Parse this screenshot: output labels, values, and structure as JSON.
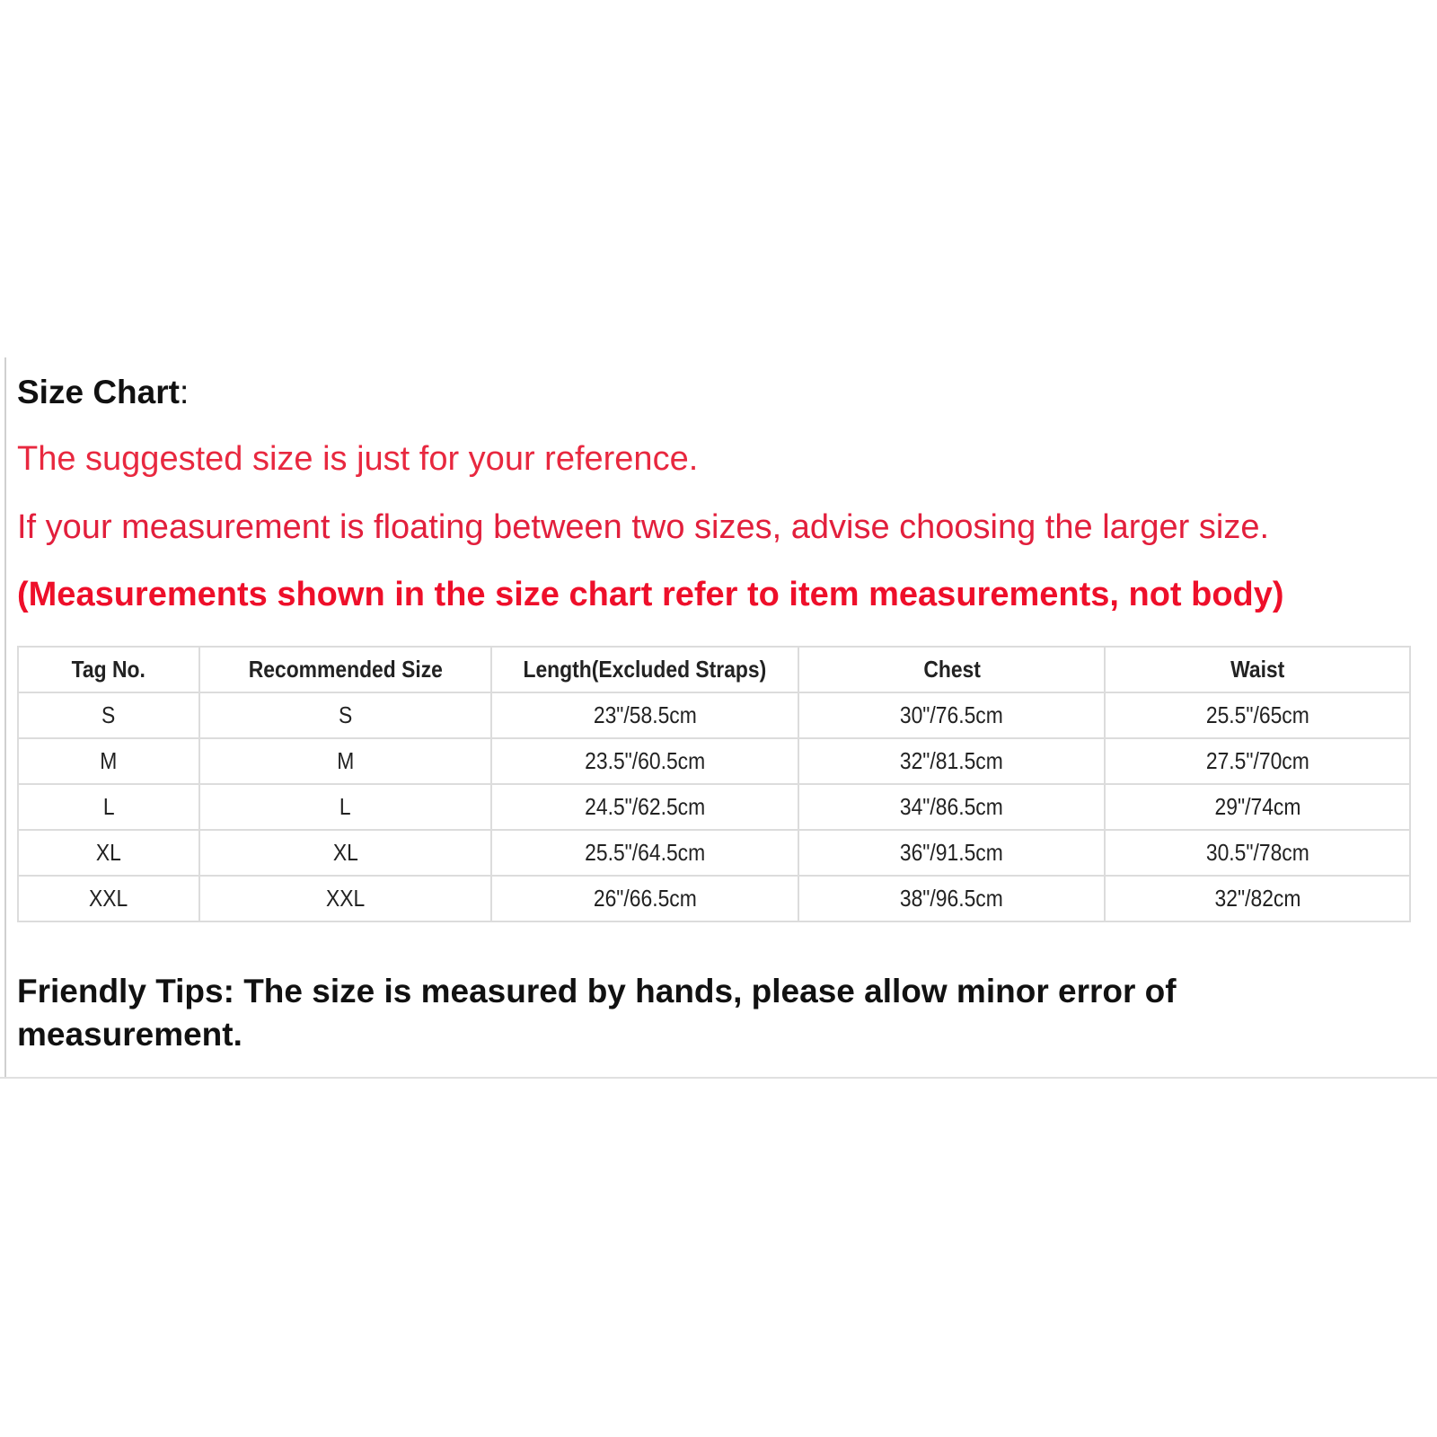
{
  "title": "Size Chart",
  "title_colon": ":",
  "notes": [
    "The suggested size is just for your reference.",
    "If your measurement is floating between two sizes, advise choosing the larger size.",
    "(Measurements shown in the size chart refer to item measurements, not body)"
  ],
  "colors": {
    "note_red": "#e8283f",
    "warning_red": "#ee0f2a",
    "border": "#dcdcdc"
  },
  "table": {
    "headers": [
      "Tag No.",
      "Recommended Size",
      "Length(Excluded Straps)",
      "Chest",
      "Waist"
    ],
    "rows": [
      [
        "S",
        "S",
        "23\"/58.5cm",
        "30\"/76.5cm",
        "25.5\"/65cm"
      ],
      [
        "M",
        "M",
        "23.5\"/60.5cm",
        "32\"/81.5cm",
        "27.5\"/70cm"
      ],
      [
        "L",
        "L",
        "24.5\"/62.5cm",
        "34\"/86.5cm",
        "29\"/74cm"
      ],
      [
        "XL",
        "XL",
        "25.5\"/64.5cm",
        "36\"/91.5cm",
        "30.5\"/78cm"
      ],
      [
        "XXL",
        "XXL",
        "26\"/66.5cm",
        "38\"/96.5cm",
        "32\"/82cm"
      ]
    ]
  },
  "tips": "Friendly Tips: The size is measured by hands, please allow minor error of measurement."
}
